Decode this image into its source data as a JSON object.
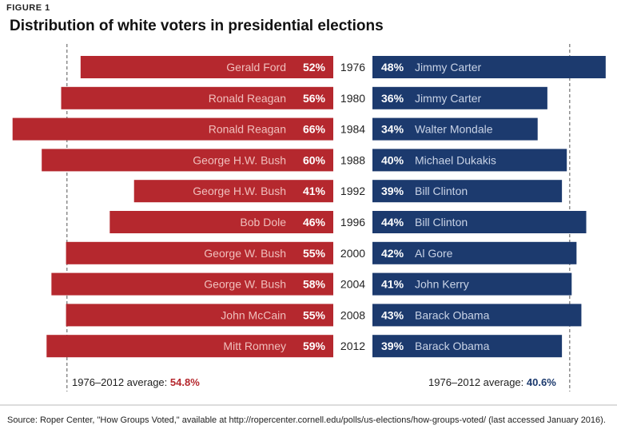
{
  "figure_label": "FIGURE 1",
  "source_note": "Source: Roper Center, \"How Groups Voted,\" available at http://ropercenter.cornell.edu/polls/us-elections/how-groups-voted/ (last accessed January 2016).",
  "colors": {
    "republican": "#b5282e",
    "democrat": "#1c3a6e",
    "dem_label": "#c9d3e6",
    "rep_label": "#f0c0bd",
    "avg_rep": "#b5282e",
    "avg_dem": "#1c3a6e"
  },
  "chart_data": {
    "type": "bar",
    "title": "Distribution of white voters in presidential elections",
    "categories": [
      "1976",
      "1980",
      "1984",
      "1988",
      "1992",
      "1996",
      "2000",
      "2004",
      "2008",
      "2012"
    ],
    "series": [
      {
        "name": "",
        "side": "left",
        "candidates": [
          "Gerald Ford",
          "Ronald Reagan",
          "Ronald Reagan",
          "George H.W. Bush",
          "George H.W. Bush",
          "Bob Dole",
          "George W. Bush",
          "George W. Bush",
          "John McCain",
          "Mitt Romney"
        ],
        "values": [
          52,
          56,
          66,
          60,
          41,
          46,
          55,
          58,
          55,
          59
        ],
        "value_labels": [
          "52%",
          "56%",
          "66%",
          "60%",
          "41%",
          "46%",
          "55%",
          "58%",
          "55%",
          "59%"
        ]
      },
      {
        "name": "",
        "side": "right",
        "candidates": [
          "Jimmy Carter",
          "Jimmy Carter",
          "Walter Mondale",
          "Michael Dukakis",
          "Bill Clinton",
          "Bill Clinton",
          "Al Gore",
          "John Kerry",
          "Barack Obama",
          "Barack Obama"
        ],
        "values": [
          48,
          36,
          34,
          40,
          39,
          44,
          42,
          41,
          43,
          39
        ],
        "value_labels": [
          "48%",
          "36%",
          "34%",
          "40%",
          "39%",
          "44%",
          "42%",
          "41%",
          "43%",
          "39%"
        ]
      }
    ],
    "averages": [
      {
        "side": "left",
        "label": "1976–2012 average: ",
        "value": 54.8,
        "value_label": "54.8%"
      },
      {
        "side": "right",
        "label": "1976–2012 average: ",
        "value": 40.6,
        "value_label": "40.6%"
      }
    ]
  }
}
